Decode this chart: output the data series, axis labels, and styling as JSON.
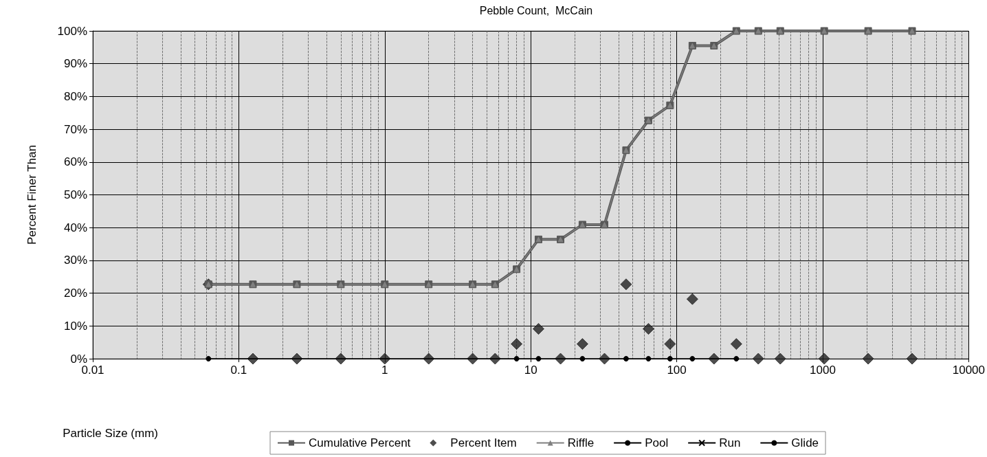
{
  "chart_data": {
    "type": "line",
    "title": "Pebble Count,  McCain",
    "xlabel": "Particle Size (mm)",
    "ylabel": "Percent Finer Than",
    "log": "x",
    "xlim": [
      0.01,
      10000
    ],
    "xticks": [
      0.01,
      0.1,
      1,
      10,
      100,
      1000,
      10000
    ],
    "ylim": [
      0,
      100
    ],
    "yticks": [
      {
        "value": 0,
        "label": "0%"
      },
      {
        "value": 10,
        "label": "10%"
      },
      {
        "value": 20,
        "label": "20%"
      },
      {
        "value": 30,
        "label": "30%"
      },
      {
        "value": 40,
        "label": "40%"
      },
      {
        "value": 50,
        "label": "50%"
      },
      {
        "value": 60,
        "label": "60%"
      },
      {
        "value": 70,
        "label": "70%"
      },
      {
        "value": 80,
        "label": "80%"
      },
      {
        "value": 90,
        "label": "90%"
      },
      {
        "value": 100,
        "label": "100%"
      }
    ],
    "grid": true,
    "legend": "bottom",
    "series": [
      {
        "name": "Cumulative Percent",
        "marker": "square",
        "color": "#585858",
        "x": [
          0.062,
          0.125,
          0.25,
          0.5,
          1,
          2,
          4,
          5.7,
          8,
          11.3,
          16,
          22.6,
          32,
          45,
          64,
          90,
          128,
          180,
          256,
          362,
          512,
          1024,
          2048,
          4096
        ],
        "values": [
          22.7,
          22.7,
          22.7,
          22.7,
          22.7,
          22.7,
          22.7,
          22.7,
          27.3,
          36.4,
          36.4,
          40.9,
          40.9,
          63.6,
          72.7,
          77.3,
          95.5,
          95.5,
          100,
          100,
          100,
          100,
          100,
          100
        ]
      },
      {
        "name": "Percent Item",
        "type": "scatter",
        "marker": "diamond",
        "color": "#222222",
        "x": [
          0.062,
          0.125,
          0.25,
          0.5,
          1,
          2,
          4,
          5.7,
          8,
          11.3,
          16,
          22.6,
          32,
          45,
          64,
          90,
          128,
          180,
          256,
          362,
          512,
          1024,
          2048,
          4096
        ],
        "values": [
          22.7,
          0,
          0,
          0,
          0,
          0,
          0,
          0,
          4.5,
          9.1,
          0,
          4.5,
          0,
          22.7,
          9.1,
          4.5,
          18.2,
          0,
          4.5,
          0,
          0,
          0,
          0,
          0
        ]
      },
      {
        "name": "Riffle",
        "marker": "triangle",
        "color": "#808080",
        "x": [
          0.062,
          0.125,
          0.25,
          0.5,
          1,
          2,
          4,
          5.7,
          8,
          11.3,
          16,
          22.6,
          32,
          45,
          64,
          90,
          128,
          180,
          256,
          362,
          512,
          1024,
          2048,
          4096
        ],
        "values": [
          22.7,
          22.7,
          22.7,
          22.7,
          22.7,
          22.7,
          22.7,
          22.7,
          27.3,
          36.4,
          36.4,
          40.9,
          40.9,
          63.6,
          72.7,
          77.3,
          95.5,
          95.5,
          100,
          100,
          100,
          100,
          100,
          100
        ]
      },
      {
        "name": "Pool",
        "marker": "circle",
        "color": "#000000"
      },
      {
        "name": "Run",
        "marker": "cross",
        "color": "#000000"
      },
      {
        "name": "Glide",
        "marker": "circle",
        "color": "#000000",
        "x": [
          0.062,
          8,
          11.3,
          22.6,
          45,
          64,
          90,
          128,
          256
        ],
        "values": [
          0,
          0,
          0,
          0,
          0,
          0,
          0,
          0,
          0
        ]
      }
    ]
  }
}
